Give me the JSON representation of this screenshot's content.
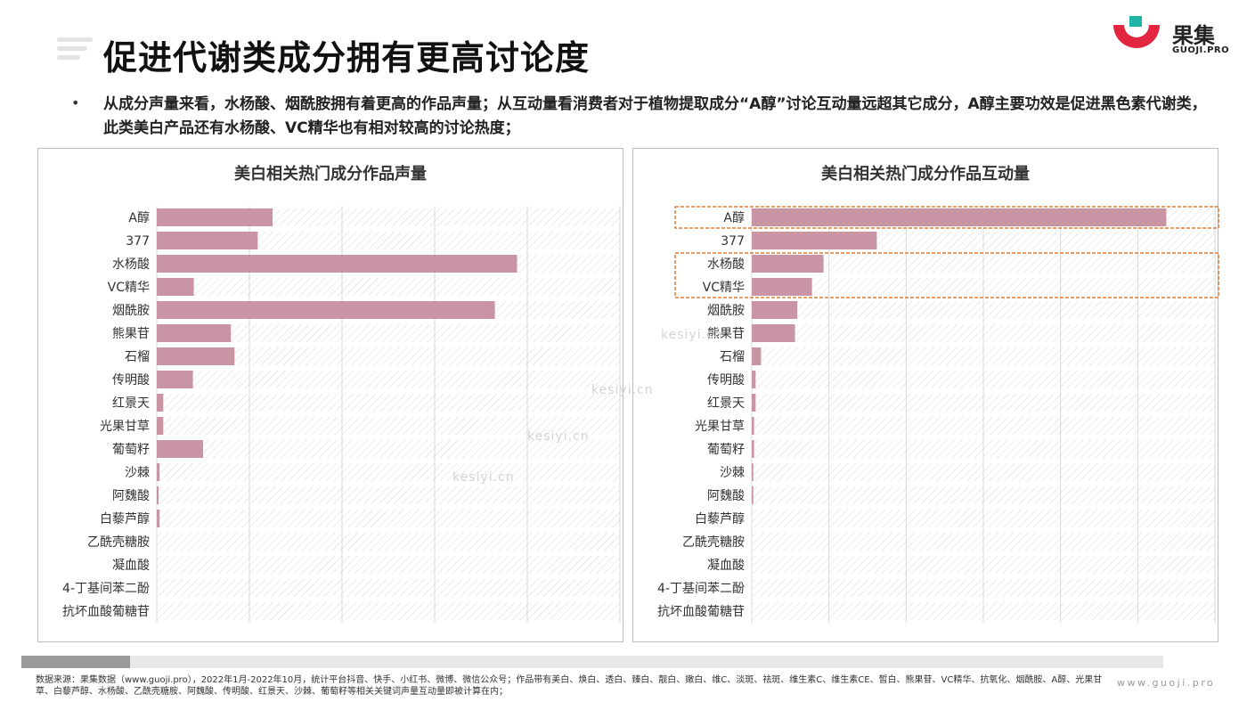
{
  "header": {
    "title": "促进代谢类成分拥有更高讨论度",
    "logo_name": "果集",
    "logo_domain": "GUOJI.PRO"
  },
  "summary": {
    "bullet": "•",
    "text": "从成分声量来看，水杨酸、烟酰胺拥有着更高的作品声量；从互动量看消费者对于植物提取成分“A醇”讨论互动量远超其它成分，A醇主要功效是促进黑色素代谢类，此类美白产品还有水杨酸、VC精华也有相对较高的讨论热度；"
  },
  "watermarks": [
    "kesiyi.cn",
    "kesiyi.cn",
    "kesiyi.cn",
    "kesiyi.cn"
  ],
  "colors": {
    "bar": "#c995a4",
    "highlight_box": "#e07b39",
    "grid": "#d8d8d8",
    "hatch": "#dcdcdc"
  },
  "chart_data": [
    {
      "type": "bar",
      "orientation": "horizontal",
      "title": "美白相关热门成分作品声量",
      "xlabel": "",
      "ylabel": "",
      "xlim": [
        0,
        5
      ],
      "grid": true,
      "categories": [
        "A醇",
        "377",
        "水杨酸",
        "VC精华",
        "烟酰胺",
        "熊果苷",
        "石榴",
        "传明酸",
        "红景天",
        "光果甘草",
        "葡萄籽",
        "沙棘",
        "阿魏酸",
        "白藜芦醇",
        "乙酰壳糖胺",
        "凝血酸",
        "4-丁基间苯二酚",
        "抗坏血酸葡糖苷"
      ],
      "values": [
        1.25,
        1.09,
        3.89,
        0.4,
        3.65,
        0.8,
        0.84,
        0.39,
        0.07,
        0.07,
        0.5,
        0.03,
        0.02,
        0.03,
        0.0,
        0.0,
        0.0,
        0.0
      ]
    },
    {
      "type": "bar",
      "orientation": "horizontal",
      "title": "美白相关热门成分作品互动量",
      "xlabel": "",
      "ylabel": "",
      "xlim": [
        0,
        6
      ],
      "grid": true,
      "categories": [
        "A醇",
        "377",
        "水杨酸",
        "VC精华",
        "烟酰胺",
        "熊果苷",
        "石榴",
        "传明酸",
        "红景天",
        "光果甘草",
        "葡萄籽",
        "沙棘",
        "阿魏酸",
        "白藜芦醇",
        "乙酰壳糖胺",
        "凝血酸",
        "4-丁基间苯二酚",
        "抗坏血酸葡糖苷"
      ],
      "values": [
        5.37,
        1.62,
        0.93,
        0.78,
        0.59,
        0.56,
        0.12,
        0.05,
        0.05,
        0.03,
        0.03,
        0.02,
        0.02,
        0.0,
        0.0,
        0.0,
        0.0,
        0.0
      ],
      "highlight_groups": [
        [
          "A醇"
        ],
        [
          "水杨酸",
          "VC精华"
        ]
      ]
    }
  ],
  "footer": {
    "note": "数据来源：果集数据（www.guoji.pro），2022年1月-2022年10月，统计平台抖音、快手、小红书、微博、微信公众号；作品带有美白、焕白、透白、臻白、靓白、嫩白、维C、淡斑、祛斑、维生素C、维生素CE、皙白、熊果苷、VC精华、抗氧化、烟酰胺、A醇、光果甘草、白藜芦醇、水杨酸、乙酰壳糖胺、阿魏酸、传明酸、红景天、沙棘、葡萄籽等相关关键词声量互动量即被计算在内；",
    "site": "www.guoji.pro"
  }
}
